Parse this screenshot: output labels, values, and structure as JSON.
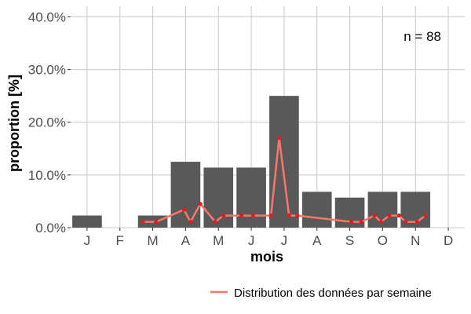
{
  "chart_data": {
    "type": "bar",
    "xlabel": "mois",
    "ylabel": "proportion [%]",
    "annotation": "n = 88",
    "categories": [
      "J",
      "F",
      "M",
      "A",
      "M",
      "J",
      "J",
      "A",
      "S",
      "O",
      "N",
      "D"
    ],
    "values": [
      2.3,
      0,
      2.3,
      12.5,
      11.4,
      11.4,
      25.0,
      6.8,
      5.7,
      6.8,
      6.8,
      0
    ],
    "ylim": [
      0,
      42
    ],
    "yticks": [
      0,
      10,
      20,
      30,
      40
    ],
    "ytick_labels": [
      "0.0%",
      "10.0%",
      "20.0%",
      "30.0%",
      "40.0%"
    ],
    "grid": true,
    "bar_color": "#595959",
    "series": [
      {
        "name": "Distribution des données par semaine",
        "type": "line",
        "color": "#f8766d",
        "point_color": "#e41a1c",
        "x": [
          2.7,
          3.1,
          3.95,
          4.15,
          4.45,
          4.9,
          5.15,
          5.7,
          6.05,
          6.6,
          6.85,
          7.15,
          7.4,
          9.05,
          9.35,
          9.75,
          9.95,
          10.2,
          10.5,
          10.7,
          11.05,
          11.3
        ],
        "y": [
          1.1,
          1.1,
          3.4,
          1.1,
          4.5,
          1.1,
          2.3,
          2.3,
          2.3,
          2.3,
          17.0,
          2.3,
          2.3,
          1.1,
          1.1,
          2.3,
          1.1,
          2.3,
          2.3,
          1.1,
          1.1,
          2.3
        ]
      }
    ],
    "legend": {
      "position": "bottom-right",
      "label": "Distribution des données par semaine"
    }
  }
}
